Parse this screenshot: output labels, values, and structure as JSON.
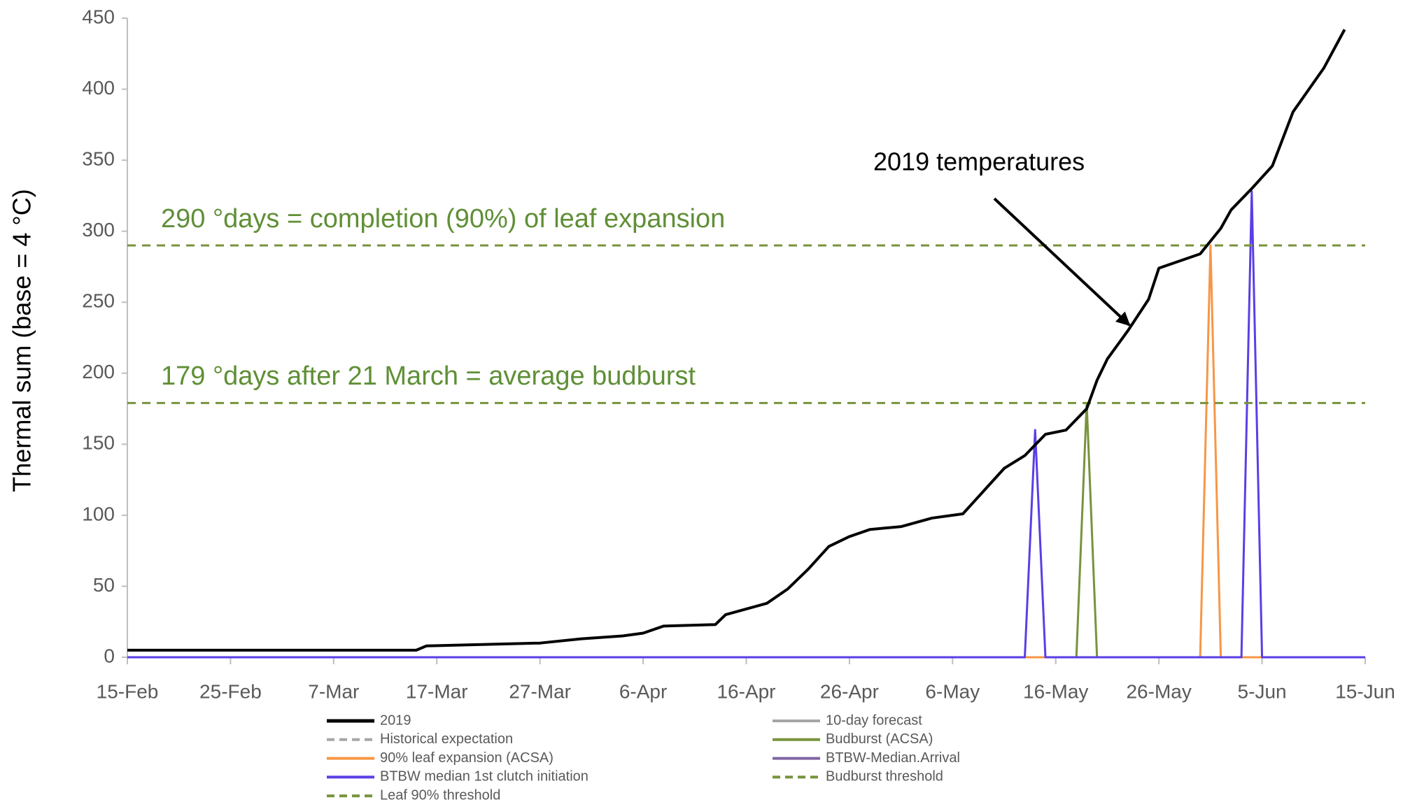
{
  "chart_data": {
    "type": "line",
    "y_label": "Thermal sum (base = 4 °C)",
    "xlim": [
      "15-Feb",
      "15-Jun"
    ],
    "xticks": [
      "15-Feb",
      "25-Feb",
      "7-Mar",
      "17-Mar",
      "27-Mar",
      "6-Apr",
      "16-Apr",
      "26-Apr",
      "6-May",
      "16-May",
      "26-May",
      "5-Jun",
      "15-Jun"
    ],
    "ylim": [
      0,
      450
    ],
    "yticks": [
      0,
      50,
      100,
      150,
      200,
      250,
      300,
      350,
      400,
      450
    ],
    "annotations": [
      "290 °days = completion (90%) of leaf expansion",
      "179 °days after 21 March = average budburst",
      "2019 temperatures"
    ],
    "series": [
      {
        "name": "2019",
        "color": "#000000",
        "dash": false,
        "x": [
          "15-Feb",
          "15-Mar",
          "16-Mar",
          "27-Mar",
          "31-Mar",
          "4-Apr",
          "6-Apr",
          "8-Apr",
          "13-Apr",
          "14-Apr",
          "16-Apr",
          "18-Apr",
          "20-Apr",
          "22-Apr",
          "24-Apr",
          "26-Apr",
          "28-Apr",
          "1-May",
          "4-May",
          "7-May",
          "9-May",
          "11-May",
          "13-May",
          "15-May",
          "17-May",
          "19-May",
          "20-May",
          "21-May",
          "23-May",
          "25-May",
          "26-May",
          "30-May",
          "1-Jun",
          "2-Jun",
          "4-Jun",
          "6-Jun",
          "8-Jun",
          "11-Jun",
          "13-Jun"
        ],
        "values": [
          5,
          5,
          8,
          10,
          13,
          15,
          17,
          22,
          23,
          30,
          34,
          38,
          48,
          62,
          78,
          85,
          90,
          92,
          98,
          101,
          117,
          133,
          142,
          157,
          160,
          175,
          195,
          210,
          230,
          252,
          274,
          284,
          302,
          315,
          330,
          346,
          384,
          415,
          442
        ]
      },
      {
        "name": "10-day forecast",
        "color": "#a6a6a6",
        "dash": false,
        "x": [],
        "values": []
      },
      {
        "name": "Historical expectation",
        "color": "#a6a6a6",
        "dash": true,
        "x": [],
        "values": []
      },
      {
        "name": "Budburst (ACSA)",
        "color": "#77933c",
        "dash": false,
        "x": [
          "15-Feb",
          "18-May",
          "19-May",
          "20-May",
          "15-Jun"
        ],
        "values": [
          0,
          0,
          179,
          0,
          0
        ]
      },
      {
        "name": "90% leaf expansion (ACSA)",
        "color": "#f79646",
        "dash": false,
        "x": [
          "15-Feb",
          "30-May",
          "31-May",
          "1-Jun",
          "15-Jun"
        ],
        "values": [
          0,
          0,
          290,
          0,
          0
        ]
      },
      {
        "name": "BTBW-Median.Arrival",
        "color": "#8064a2",
        "dash": false,
        "x": [],
        "values": []
      },
      {
        "name": "BTBW median 1st clutch initiation",
        "color": "#5a3ee6",
        "dash": false,
        "x": [
          "15-Feb",
          "13-May",
          "14-May",
          "15-May",
          "3-Jun",
          "4-Jun",
          "5-Jun",
          "15-Jun"
        ],
        "values": [
          0,
          0,
          160,
          0,
          0,
          328,
          0,
          0
        ]
      },
      {
        "name": "Budburst threshold",
        "color": "#77933c",
        "dash": true,
        "x": [
          "15-Feb",
          "15-Jun"
        ],
        "values": [
          179,
          179
        ]
      },
      {
        "name": "Leaf 90% threshold",
        "color": "#77933c",
        "dash": true,
        "x": [
          "15-Feb",
          "15-Jun"
        ],
        "values": [
          290,
          290
        ]
      }
    ]
  }
}
